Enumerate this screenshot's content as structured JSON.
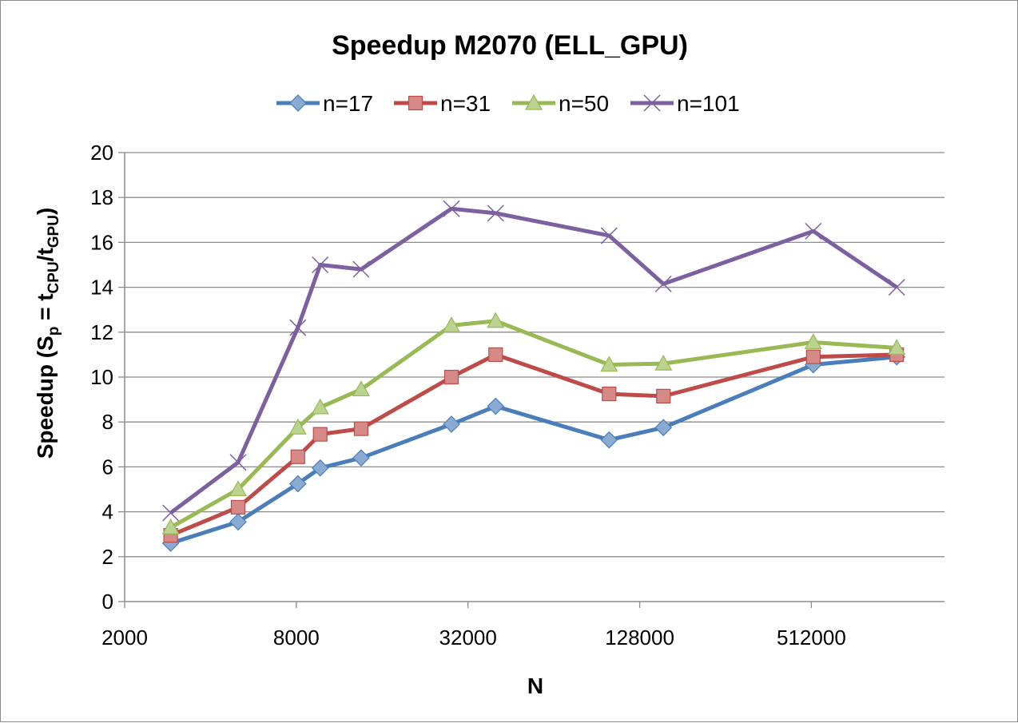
{
  "chart_data": {
    "type": "line",
    "title": "Speedup M2070 (ELL_GPU)",
    "xlabel": "N",
    "ylabel": {
      "parts": [
        {
          "text": "Speedup (S",
          "sub": false
        },
        {
          "text": "p",
          "sub": true
        },
        {
          "text": " = t",
          "sub": false
        },
        {
          "text": "CPU",
          "sub": true
        },
        {
          "text": "/t",
          "sub": false
        },
        {
          "text": "GPU",
          "sub": true
        },
        {
          "text": ")",
          "sub": false
        }
      ]
    },
    "x_scale": "log2",
    "xlim": [
      2000,
      1500000
    ],
    "ylim": [
      0,
      20
    ],
    "x_ticks": [
      2000,
      8000,
      32000,
      128000,
      512000
    ],
    "y_ticks": [
      0,
      2,
      4,
      6,
      8,
      10,
      12,
      14,
      16,
      18,
      20
    ],
    "grid": "horizontal",
    "legend_position": "top",
    "x": [
      2900,
      5000,
      8100,
      9700,
      13500,
      28000,
      40000,
      100000,
      155000,
      520000,
      1020000
    ],
    "series": [
      {
        "name": "n=17",
        "color": "#4a7ebb",
        "marker": "diamond",
        "values": [
          2.6,
          3.55,
          5.25,
          5.95,
          6.4,
          7.9,
          8.7,
          7.2,
          7.75,
          10.55,
          10.9
        ]
      },
      {
        "name": "n=31",
        "color": "#be4b48",
        "marker": "square",
        "values": [
          2.95,
          4.2,
          6.45,
          7.45,
          7.7,
          10.0,
          11.0,
          9.25,
          9.15,
          10.9,
          11.0
        ]
      },
      {
        "name": "n=50",
        "color": "#98b954",
        "marker": "triangle",
        "values": [
          3.3,
          5.0,
          7.75,
          8.65,
          9.45,
          12.3,
          12.5,
          10.55,
          10.6,
          11.55,
          11.3
        ]
      },
      {
        "name": "n=101",
        "color": "#7d60a0",
        "marker": "cross",
        "values": [
          3.95,
          6.2,
          12.2,
          15.0,
          14.8,
          17.5,
          17.3,
          16.3,
          14.15,
          16.5,
          14.0
        ]
      }
    ]
  }
}
